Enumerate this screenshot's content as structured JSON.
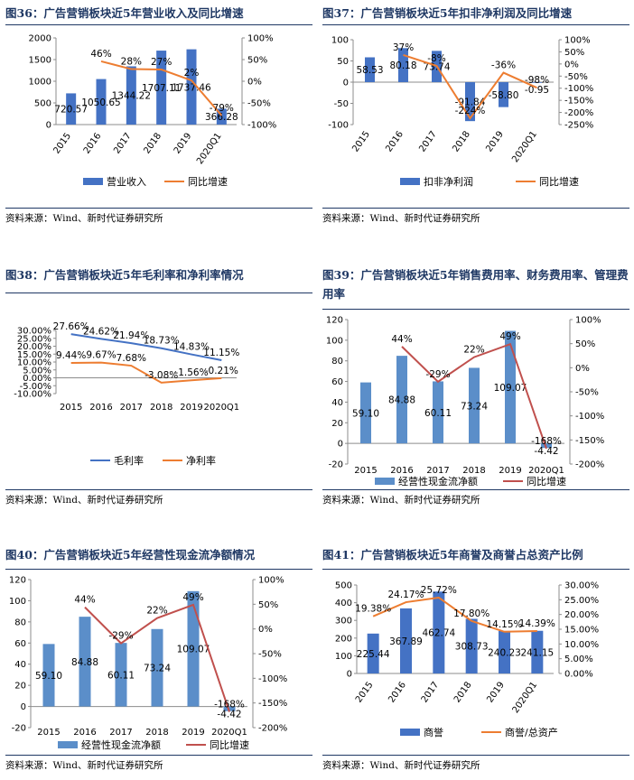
{
  "source_label": "资料来源：Wind、新时代证券研究所",
  "charts": [
    {
      "figure_title": "图36：广告营销板块近5年营业收入及同比增速",
      "chart_data": {
        "type": "bar",
        "categories": [
          "2015",
          "2016",
          "2017",
          "2018",
          "2019",
          "2020Q1"
        ],
        "series": [
          {
            "name": "营业收入",
            "kind": "bar",
            "axis": "left",
            "values": [
              720.57,
              1050.65,
              1344.22,
              1707.11,
              1737.46,
              366.28
            ],
            "labels": [
              "720.57",
              "1050.65",
              "1344.22",
              "1707.11",
              "1737.46",
              "366.28"
            ]
          },
          {
            "name": "同比增速",
            "kind": "line",
            "axis": "right",
            "values": [
              null,
              46,
              28,
              27,
              2,
              -79
            ],
            "labels": [
              "",
              "46%",
              "28%",
              "27%",
              "2%",
              "-79%"
            ]
          }
        ],
        "left_ticks": [
          0,
          500,
          1000,
          1500,
          2000
        ],
        "left_range": [
          0,
          2000
        ],
        "right_ticks": [
          "100%",
          "50%",
          "0%",
          "-50%",
          "-100%"
        ],
        "right_range": [
          -100,
          100
        ],
        "legend_position": "bottom",
        "grid": false,
        "colors": {
          "bar": "#4472c4",
          "line": "#ed7d31"
        }
      }
    },
    {
      "figure_title": "图37：广告营销板块近5年扣非净利润及同比增速",
      "chart_data": {
        "type": "bar",
        "categories": [
          "2015",
          "2016",
          "2017",
          "2018",
          "2019",
          "2020Q1"
        ],
        "series": [
          {
            "name": "扣非净利润",
            "kind": "bar",
            "axis": "left",
            "values": [
              58.53,
              80.18,
              73.74,
              -91.84,
              -58.8,
              -0.95
            ],
            "labels": [
              "58.53",
              "80.18",
              "73.74",
              "-91.84",
              "-58.80",
              "-0.95"
            ]
          },
          {
            "name": "同比增速",
            "kind": "line",
            "axis": "right",
            "values": [
              null,
              37,
              -8,
              -224,
              -36,
              -98
            ],
            "labels": [
              "",
              "37%",
              "-8%",
              "-224%",
              "-36%",
              "-98%"
            ]
          }
        ],
        "left_ticks": [
          100,
          50,
          0,
          -50,
          -100
        ],
        "left_range": [
          -100,
          100
        ],
        "right_ticks": [
          "100%",
          "50%",
          "0%",
          "-50%",
          "-100%",
          "-150%",
          "-200%",
          "-250%"
        ],
        "right_range": [
          -250,
          100
        ],
        "legend_position": "bottom",
        "grid": false,
        "colors": {
          "bar": "#4472c4",
          "line": "#ed7d31"
        }
      }
    },
    {
      "figure_title": "图38：广告营销板块近5年毛利率和净利率情况",
      "chart_data": {
        "type": "line",
        "categories": [
          "2015",
          "2016",
          "2017",
          "2018",
          "2019",
          "2020Q1"
        ],
        "series": [
          {
            "name": "毛利率",
            "kind": "line",
            "axis": "left",
            "values": [
              27.66,
              24.62,
              21.94,
              18.73,
              14.83,
              11.15
            ],
            "labels": [
              "27.66%",
              "24.62%",
              "21.94%",
              "18.73%",
              "14.83%",
              "11.15%"
            ]
          },
          {
            "name": "净利率",
            "kind": "line",
            "axis": "left",
            "values": [
              9.44,
              9.67,
              7.68,
              -3.08,
              -1.56,
              -0.21
            ],
            "labels": [
              "9.44%",
              "9.67%",
              "7.68%",
              "-3.08%",
              "-1.56%",
              "-0.21%"
            ]
          }
        ],
        "left_ticks": [
          "30.00%",
          "25.00%",
          "20.00%",
          "15.00%",
          "10.00%",
          "5.00%",
          "0.00%",
          "-5.00%",
          "-10.00%"
        ],
        "left_range": [
          -10,
          30
        ],
        "legend_position": "bottom",
        "grid": false,
        "colors": {
          "line1": "#4472c4",
          "line2": "#ed7d31"
        }
      }
    },
    {
      "figure_title": "图39：广告营销板块近5年销售费用率、财务费用率、管理费用率",
      "chart_data": {
        "type": "bar",
        "categories": [
          "2015",
          "2016",
          "2017",
          "2018",
          "2019",
          "2020Q1"
        ],
        "series": [
          {
            "name": "经营性现金流净额",
            "kind": "bar",
            "axis": "left",
            "values": [
              59.1,
              84.88,
              60.11,
              73.24,
              109.07,
              -4.42
            ],
            "labels": [
              "59.10",
              "84.88",
              "60.11",
              "73.24",
              "109.07",
              "-4.42"
            ]
          },
          {
            "name": "同比增速",
            "kind": "line",
            "axis": "right",
            "values": [
              null,
              44,
              -29,
              22,
              49,
              -168
            ],
            "labels": [
              "",
              "44%",
              "-29%",
              "22%",
              "49%",
              "-168%"
            ]
          }
        ],
        "left_ticks": [
          120,
          100,
          80,
          60,
          40,
          20,
          0,
          -20
        ],
        "left_range": [
          -20,
          120
        ],
        "right_ticks": [
          "100%",
          "50%",
          "0%",
          "-50%",
          "-100%",
          "-150%",
          "-200%"
        ],
        "right_range": [
          -200,
          100
        ],
        "legend_position": "bottom",
        "grid": false,
        "colors": {
          "bar": "#5b8ec9",
          "line": "#c0504d"
        }
      }
    },
    {
      "figure_title": "图40：广告营销板块近5年经营性现金流净额情况",
      "chart_data": {
        "type": "bar",
        "categories": [
          "2015",
          "2016",
          "2017",
          "2018",
          "2019",
          "2020Q1"
        ],
        "series": [
          {
            "name": "经营性现金流净额",
            "kind": "bar",
            "axis": "left",
            "values": [
              59.1,
              84.88,
              60.11,
              73.24,
              109.07,
              -4.42
            ],
            "labels": [
              "59.10",
              "84.88",
              "60.11",
              "73.24",
              "109.07",
              "-4.42"
            ]
          },
          {
            "name": "同比增速",
            "kind": "line",
            "axis": "right",
            "values": [
              null,
              44,
              -29,
              22,
              49,
              -168
            ],
            "labels": [
              "",
              "44%",
              "-29%",
              "22%",
              "49%",
              "-168%"
            ]
          }
        ],
        "left_ticks": [
          120,
          100,
          80,
          60,
          40,
          20,
          0,
          -20
        ],
        "left_range": [
          -20,
          120
        ],
        "right_ticks": [
          "100%",
          "50%",
          "0%",
          "-50%",
          "-100%",
          "-150%",
          "-200%"
        ],
        "right_range": [
          -200,
          100
        ],
        "legend_position": "bottom",
        "grid": false,
        "colors": {
          "bar": "#5b8ec9",
          "line": "#c0504d"
        }
      }
    },
    {
      "figure_title": "图41：广告营销板块近5年商誉及商誉占总资产比例",
      "chart_data": {
        "type": "bar",
        "categories": [
          "2015",
          "2016",
          "2017",
          "2018",
          "2019",
          "2020Q1"
        ],
        "series": [
          {
            "name": "商誉",
            "kind": "bar",
            "axis": "left",
            "values": [
              225.44,
              367.89,
              462.74,
              308.73,
              240.23,
              241.15
            ],
            "labels": [
              "225.44",
              "367.89",
              "462.74",
              "308.73",
              "240.23",
              "241.15"
            ]
          },
          {
            "name": "商誉/总资产",
            "kind": "line",
            "axis": "right",
            "values": [
              19.38,
              24.17,
              25.72,
              17.8,
              14.15,
              14.39
            ],
            "labels": [
              "19.38%",
              "24.17%",
              "25.72%",
              "17.80%",
              "14.15%",
              "14.39%"
            ]
          }
        ],
        "left_ticks": [
          500,
          400,
          300,
          200,
          100,
          0
        ],
        "left_range": [
          0,
          500
        ],
        "right_ticks": [
          "30.00%",
          "25.00%",
          "20.00%",
          "15.00%",
          "10.00%",
          "5.00%",
          "0.00%"
        ],
        "right_range": [
          0,
          30
        ],
        "legend_position": "bottom",
        "grid": false,
        "colors": {
          "bar": "#4472c4",
          "line": "#ed7d31"
        }
      }
    }
  ]
}
